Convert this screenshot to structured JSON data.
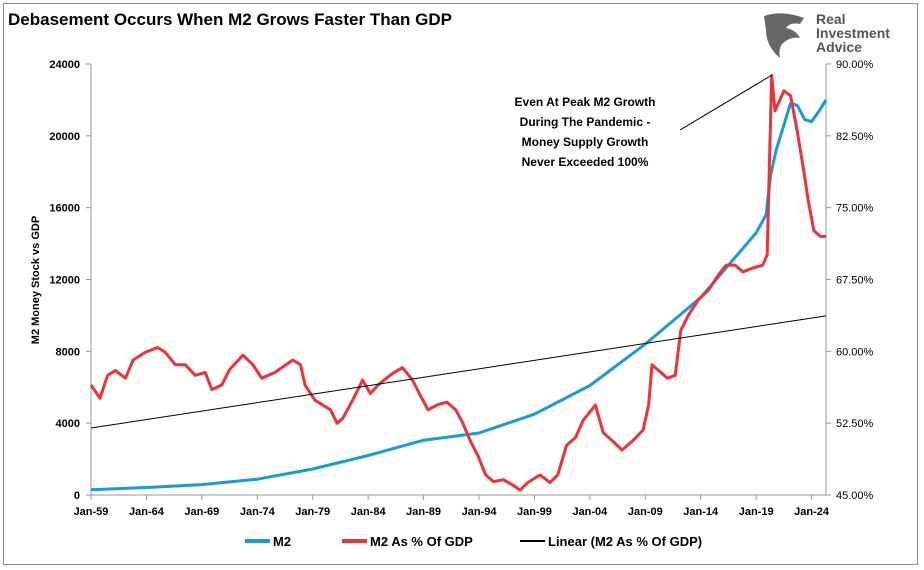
{
  "logo": {
    "lines": [
      "Real",
      "Investment",
      "Advice"
    ]
  },
  "chart_data": {
    "type": "line",
    "title": "Debasement Occurs When M2 Grows Faster Than GDP",
    "ylabel": "M2 Money Stock vs GDP",
    "ylim": [
      0,
      24000
    ],
    "y2lim": [
      45,
      90
    ],
    "xlim": [
      "1959-01",
      "2025-04"
    ],
    "y_ticks": [
      "0",
      "4000",
      "8000",
      "12000",
      "16000",
      "20000",
      "24000"
    ],
    "y2_ticks": [
      "45.00%",
      "52.50%",
      "60.00%",
      "67.50%",
      "75.00%",
      "82.50%",
      "90.00%"
    ],
    "x_ticks": [
      "Jan-59",
      "Jan-64",
      "Jan-69",
      "Jan-74",
      "Jan-79",
      "Jan-84",
      "Jan-89",
      "Jan-94",
      "Jan-99",
      "Jan-04",
      "Jan-09",
      "Jan-14",
      "Jan-19",
      "Jan-24"
    ],
    "grid": false,
    "legend_position": "bottom",
    "annotation": "Even At Peak M2 Growth\nDuring The Pandemic -\nMoney Supply Growth\nNever Exceeded 100%",
    "series": [
      {
        "name": "M2",
        "axis": "left",
        "color": "#1a9ad6",
        "points": [
          [
            1959.0,
            290
          ],
          [
            1964.0,
            420
          ],
          [
            1969.0,
            580
          ],
          [
            1974.0,
            880
          ],
          [
            1979.0,
            1450
          ],
          [
            1984.0,
            2200
          ],
          [
            1989.0,
            3050
          ],
          [
            1994.0,
            3450
          ],
          [
            1999.0,
            4500
          ],
          [
            2004.0,
            6100
          ],
          [
            2009.0,
            8400
          ],
          [
            2014.0,
            11000
          ],
          [
            2019.0,
            14600
          ],
          [
            2019.9,
            15600
          ],
          [
            2020.3,
            17800
          ],
          [
            2020.8,
            19200
          ],
          [
            2021.5,
            20600
          ],
          [
            2022.1,
            21800
          ],
          [
            2022.7,
            21700
          ],
          [
            2023.4,
            20900
          ],
          [
            2024.0,
            20800
          ],
          [
            2024.7,
            21400
          ],
          [
            2025.3,
            22000
          ]
        ]
      },
      {
        "name": "M2 As % Of GDP",
        "axis": "right",
        "color": "#e8343a",
        "points": [
          [
            1959.0,
            56.5
          ],
          [
            1959.8,
            55.1
          ],
          [
            1960.5,
            57.5
          ],
          [
            1961.2,
            58.0
          ],
          [
            1962.1,
            57.2
          ],
          [
            1962.8,
            59.1
          ],
          [
            1963.9,
            59.9
          ],
          [
            1965.0,
            60.4
          ],
          [
            1965.7,
            59.9
          ],
          [
            1966.6,
            58.6
          ],
          [
            1967.5,
            58.6
          ],
          [
            1968.4,
            57.5
          ],
          [
            1969.3,
            57.8
          ],
          [
            1969.9,
            56.0
          ],
          [
            1970.8,
            56.5
          ],
          [
            1971.5,
            58.1
          ],
          [
            1972.7,
            59.6
          ],
          [
            1973.6,
            58.6
          ],
          [
            1974.4,
            57.2
          ],
          [
            1975.6,
            57.8
          ],
          [
            1977.2,
            59.1
          ],
          [
            1977.9,
            58.6
          ],
          [
            1978.3,
            56.5
          ],
          [
            1979.2,
            54.9
          ],
          [
            1980.6,
            53.9
          ],
          [
            1981.2,
            52.5
          ],
          [
            1981.7,
            53.0
          ],
          [
            1982.6,
            54.9
          ],
          [
            1983.5,
            57.0
          ],
          [
            1984.2,
            55.6
          ],
          [
            1984.9,
            56.5
          ],
          [
            1986.2,
            57.7
          ],
          [
            1987.1,
            58.3
          ],
          [
            1988.0,
            57.0
          ],
          [
            1988.7,
            55.4
          ],
          [
            1989.4,
            53.9
          ],
          [
            1990.2,
            54.4
          ],
          [
            1991.1,
            54.7
          ],
          [
            1991.9,
            53.9
          ],
          [
            1992.5,
            52.6
          ],
          [
            1993.2,
            50.7
          ],
          [
            1993.9,
            49.1
          ],
          [
            1994.6,
            47.1
          ],
          [
            1995.3,
            46.4
          ],
          [
            1996.2,
            46.6
          ],
          [
            1997.1,
            46.0
          ],
          [
            1997.7,
            45.5
          ],
          [
            1998.4,
            46.3
          ],
          [
            1999.5,
            47.1
          ],
          [
            2000.4,
            46.3
          ],
          [
            2001.1,
            47.1
          ],
          [
            2001.9,
            50.2
          ],
          [
            2002.7,
            51.0
          ],
          [
            2003.4,
            52.8
          ],
          [
            2004.5,
            54.4
          ],
          [
            2005.2,
            51.5
          ],
          [
            2006.0,
            50.7
          ],
          [
            2006.9,
            49.7
          ],
          [
            2007.9,
            50.7
          ],
          [
            2008.8,
            51.8
          ],
          [
            2009.3,
            54.4
          ],
          [
            2009.6,
            58.6
          ],
          [
            2010.2,
            58.0
          ],
          [
            2011.0,
            57.2
          ],
          [
            2011.7,
            57.5
          ],
          [
            2012.2,
            62.2
          ],
          [
            2012.9,
            63.8
          ],
          [
            2013.8,
            65.4
          ],
          [
            2014.7,
            66.4
          ],
          [
            2015.6,
            68.0
          ],
          [
            2016.3,
            69.0
          ],
          [
            2017.1,
            69.0
          ],
          [
            2017.8,
            68.3
          ],
          [
            2018.7,
            68.7
          ],
          [
            2019.6,
            69.0
          ],
          [
            2020.0,
            70.1
          ],
          [
            2020.2,
            80.0
          ],
          [
            2020.4,
            88.8
          ],
          [
            2020.7,
            85.1
          ],
          [
            2021.5,
            87.2
          ],
          [
            2022.1,
            86.7
          ],
          [
            2022.7,
            83.0
          ],
          [
            2023.3,
            78.8
          ],
          [
            2023.7,
            75.7
          ],
          [
            2024.2,
            72.6
          ],
          [
            2024.8,
            72.0
          ],
          [
            2025.3,
            72.0
          ]
        ]
      },
      {
        "name": "Linear (M2 As % Of GDP)",
        "axis": "right",
        "color": "#000000",
        "points": [
          [
            1959.0,
            52.0
          ],
          [
            2025.3,
            63.7
          ]
        ]
      }
    ]
  }
}
